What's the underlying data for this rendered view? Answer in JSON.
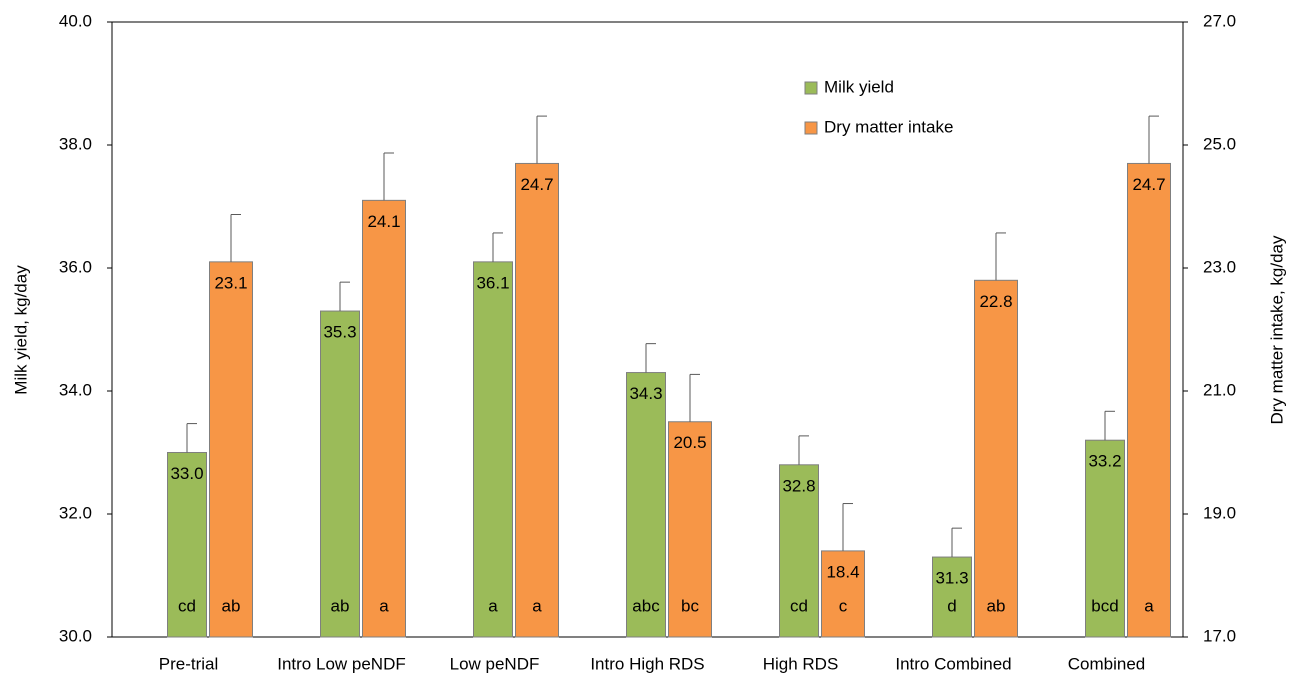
{
  "chart_data": {
    "type": "bar",
    "y_label": "Milk yield, kg/day",
    "y2_label": "Dry matter intake, kg/day",
    "categories": [
      "Pre-trial",
      "Intro Low peNDF",
      "Low peNDF",
      "Intro High RDS",
      "High RDS",
      "Intro Combined",
      "Combined"
    ],
    "series": [
      {
        "name": "Milk yield",
        "color": "#9bbb59",
        "values": [
          33.0,
          35.3,
          36.1,
          34.3,
          32.8,
          31.3,
          33.2
        ],
        "value_labels": [
          "33.0",
          "35.3",
          "36.1",
          "34.3",
          "32.8",
          "31.3",
          "33.2"
        ],
        "errors": [
          0.47,
          0.47,
          0.47,
          0.47,
          0.47,
          0.47,
          0.47
        ],
        "letters": [
          "cd",
          "ab",
          "a",
          "abc",
          "cd",
          "d",
          "bcd"
        ]
      },
      {
        "name": "Dry matter intake",
        "color": "#f79646",
        "axis": "y2",
        "values": [
          23.1,
          24.1,
          24.7,
          20.5,
          18.4,
          22.8,
          24.7
        ],
        "errors": [
          0.77,
          0.77,
          0.77,
          0.77,
          0.77,
          0.77,
          0.77
        ],
        "letters": [
          "ab",
          "a",
          "a",
          "bc",
          "c",
          "ab",
          "a"
        ]
      }
    ],
    "ylim": [
      30,
      40
    ],
    "yticks": [
      {
        "value": 30,
        "label": "30.0"
      },
      {
        "value": 32,
        "label": "32.0"
      },
      {
        "value": 34,
        "label": "34.0"
      },
      {
        "value": 36,
        "label": "36.0"
      },
      {
        "value": 38,
        "label": "38.0"
      },
      {
        "value": 40,
        "label": "40.0"
      }
    ],
    "y2lim": [
      17,
      27
    ],
    "y2ticks": [
      {
        "value": 17,
        "label": "17.0"
      },
      {
        "value": 19,
        "label": "19.0"
      },
      {
        "value": 21,
        "label": "21.0"
      },
      {
        "value": 23,
        "label": "23.0"
      },
      {
        "value": 25,
        "label": "25.0"
      },
      {
        "value": 27,
        "label": "27.0"
      }
    ],
    "legend": "upper-right"
  }
}
